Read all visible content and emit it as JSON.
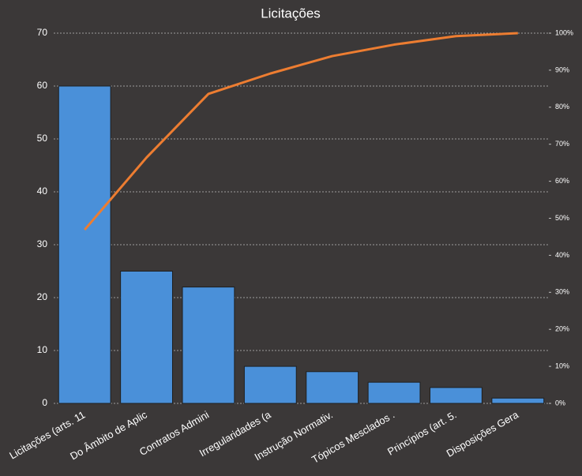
{
  "chart_data": {
    "type": "pareto",
    "title": "Licitações",
    "categories": [
      "Licitações (arts. 11",
      "Do Âmbito de Aplic",
      "Contratos Admini",
      "Irregularidades (a",
      "Instrução Normativ.",
      "Tópicos Mesclados  .",
      "Princípios (art. 5.",
      "Disposições Gera"
    ],
    "series": [
      {
        "color": "#4a90d9",
        "values": [
          60,
          25,
          22,
          7,
          6,
          4,
          3,
          1
        ]
      },
      {
        "color": "#ed7d31",
        "axis": "y2",
        "values": [
          46.9,
          66.4,
          83.6,
          89.1,
          93.8,
          96.9,
          99.2,
          100
        ]
      }
    ],
    "ylim": [
      0,
      70
    ],
    "yticks": [
      0,
      10,
      20,
      30,
      40,
      50,
      60,
      70
    ],
    "y2lim": [
      0,
      100
    ],
    "y2ticks": [
      {
        "value": 0,
        "label": "0%"
      },
      {
        "value": 10,
        "label": "10%"
      },
      {
        "value": 20,
        "label": "20%"
      },
      {
        "value": 30,
        "label": "30%"
      },
      {
        "value": 40,
        "label": "40%"
      },
      {
        "value": 50,
        "label": "50%"
      },
      {
        "value": 60,
        "label": "60%"
      },
      {
        "value": 70,
        "label": "70%"
      },
      {
        "value": 80,
        "label": "80%"
      },
      {
        "value": 90,
        "label": "90%"
      },
      {
        "value": 100,
        "label": "100%"
      }
    ],
    "grid": true
  }
}
